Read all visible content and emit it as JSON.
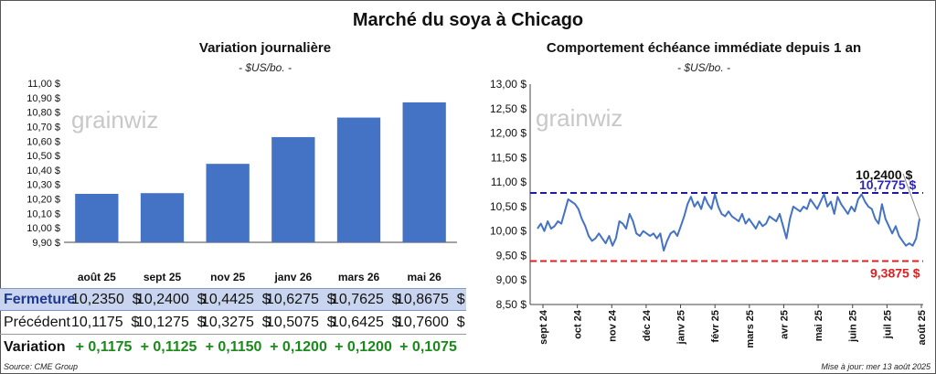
{
  "title": "Marché du soya à Chicago",
  "left_panel": {
    "title": "Variation journalière",
    "unit": "- $US/bo. -",
    "watermark": "grainwiz"
  },
  "right_panel": {
    "title": "Comportement échéance immédiate depuis 1 an",
    "unit": "- $US/bo. -",
    "watermark": "grainwiz"
  },
  "table": {
    "close_label": "Fermeture",
    "prev_label": "Précédent",
    "var_label": "Variation",
    "close": [
      "10,2350  $",
      "10,2400  $",
      "10,4425  $",
      "10,6275  $",
      "10,7625  $",
      "10,8675  $"
    ],
    "prev": [
      "10,1175  $",
      "10,1275  $",
      "10,3275  $",
      "10,5075  $",
      "10,6425  $",
      "10,7600  $"
    ],
    "variation": [
      "+ 0,1175",
      "+ 0,1125",
      "+ 0,1150",
      "+ 0,1200",
      "+ 0,1200",
      "+ 0,1075"
    ]
  },
  "footer": {
    "source": "Source: CME Group",
    "updated": "Mise à jour: mer 13 août 2025"
  },
  "colors": {
    "bar": "#4472c4",
    "line": "#4472c4",
    "high_line": "#1f1aa3",
    "low_line": "#e02020",
    "last_label": "#111111",
    "high_label": "#2d27b8",
    "low_label": "#e02020"
  },
  "chart_data": [
    {
      "type": "bar",
      "categories": [
        "août 25",
        "sept 25",
        "nov 25",
        "janv 26",
        "mars 26",
        "mai 26"
      ],
      "values": [
        10.235,
        10.24,
        10.4425,
        10.6275,
        10.7625,
        10.8675
      ],
      "ylim": [
        9.9,
        11.0
      ],
      "yticks": [
        "9,90 $",
        "10,00 $",
        "10,10 $",
        "10,20 $",
        "10,30 $",
        "10,40 $",
        "10,50 $",
        "10,60 $",
        "10,70 $",
        "10,80 $",
        "10,90 $",
        "11,00 $"
      ],
      "grid": false,
      "title": "Variation journalière"
    },
    {
      "type": "line",
      "title": "Comportement échéance immédiate depuis 1 an",
      "ylim": [
        8.5,
        13.0
      ],
      "yticks": [
        "8,50 $",
        "9,00 $",
        "9,50 $",
        "10,00 $",
        "10,50 $",
        "11,00 $",
        "11,50 $",
        "12,00 $",
        "12,50 $",
        "13,00 $"
      ],
      "xticks": [
        "sept 24",
        "oct 24",
        "nov 24",
        "déc 24",
        "janv 25",
        "févr 25",
        "mars 25",
        "avr 25",
        "mai 25",
        "juin 25",
        "juil 25",
        "août 25"
      ],
      "x_range": [
        "2024-08-13",
        "2025-08-13"
      ],
      "grid": false,
      "series": [
        {
          "values": [
            10.05,
            10.15,
            10.0,
            10.2,
            10.05,
            10.1,
            10.2,
            10.15,
            10.4,
            10.65,
            10.6,
            10.55,
            10.45,
            10.25,
            10.1,
            9.9,
            9.8,
            9.85,
            9.95,
            9.85,
            9.75,
            9.9,
            9.7,
            9.85,
            10.2,
            10.15,
            10.05,
            10.35,
            10.2,
            9.95,
            9.9,
            10.0,
            9.95,
            9.9,
            9.95,
            9.85,
            9.95,
            9.6,
            9.8,
            9.95,
            10.0,
            9.9,
            10.1,
            10.3,
            10.55,
            10.7,
            10.5,
            10.6,
            10.45,
            10.7,
            10.55,
            10.45,
            10.75,
            10.5,
            10.35,
            10.3,
            10.4,
            10.3,
            10.25,
            10.2,
            10.35,
            10.15,
            10.25,
            10.15,
            10.05,
            10.2,
            10.1,
            10.15,
            10.3,
            10.25,
            10.2,
            10.35,
            10.1,
            9.85,
            10.25,
            10.5,
            10.45,
            10.4,
            10.5,
            10.45,
            10.65,
            10.55,
            10.45,
            10.6,
            10.75,
            10.5,
            10.6,
            10.35,
            10.7,
            10.55,
            10.45,
            10.35,
            10.5,
            10.4,
            10.65,
            10.75,
            10.6,
            10.5,
            10.45,
            10.25,
            10.15,
            10.55,
            10.25,
            10.1,
            9.95,
            10.1,
            9.9,
            9.8,
            9.7,
            9.75,
            9.7,
            9.85,
            10.25
          ],
          "high": 10.7775,
          "low": 9.3875,
          "last": 10.24
        }
      ],
      "annotations": [
        "10,2400 $",
        "10,7775 $",
        "9,3875 $"
      ]
    }
  ]
}
